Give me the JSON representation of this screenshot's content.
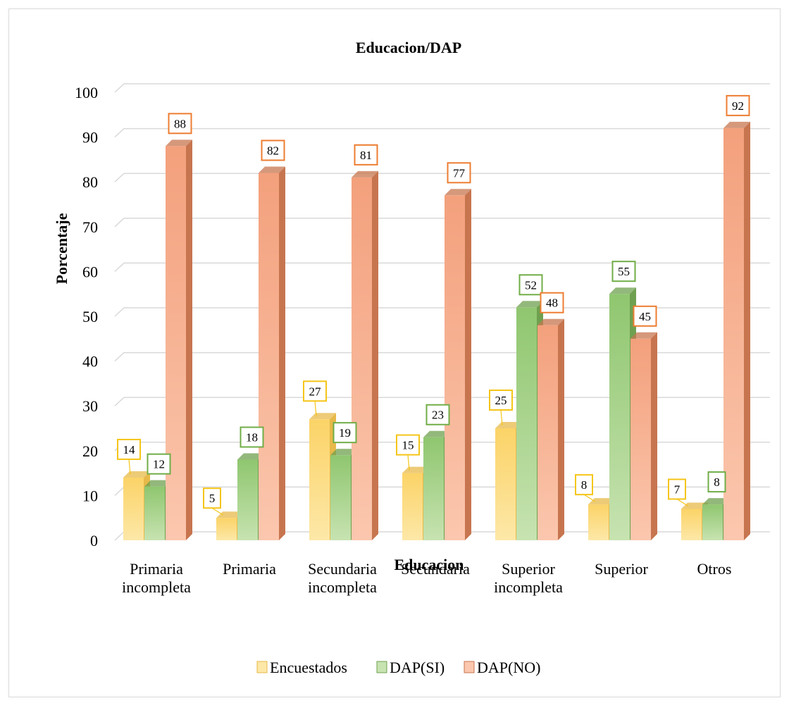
{
  "chart_data": {
    "type": "bar",
    "title": "Educacion/DAP",
    "xlabel": "Educacion",
    "ylabel": "Porcentaje",
    "ylim": [
      0,
      100
    ],
    "yticks": [
      0,
      10,
      20,
      30,
      40,
      50,
      60,
      70,
      80,
      90,
      100
    ],
    "grid": true,
    "legend_position": "bottom",
    "categories": [
      [
        "Primaria",
        "incompleta"
      ],
      [
        "Primaria"
      ],
      [
        "Secundaria",
        "incompleta"
      ],
      [
        "Secundaria"
      ],
      [
        "Superior",
        "incompleta"
      ],
      [
        "Superior"
      ],
      [
        "Otros"
      ]
    ],
    "series": [
      {
        "name": "Encuestados",
        "values": [
          14,
          5,
          27,
          15,
          25,
          8,
          7
        ],
        "color_top": "#fde8a8",
        "color_bottom": "#fbd367",
        "color_side": "#e7b94a",
        "label_border": "#f5c518"
      },
      {
        "name": "DAP(SI)",
        "values": [
          12,
          18,
          19,
          23,
          52,
          55,
          8
        ],
        "color_top": "#c7e3b1",
        "color_bottom": "#8fc66f",
        "color_side": "#6fa04f",
        "label_border": "#70ad47"
      },
      {
        "name": "DAP(NO)",
        "values": [
          88,
          82,
          81,
          77,
          48,
          45,
          92
        ],
        "color_top": "#fbc7ae",
        "color_bottom": "#f3a07c",
        "color_side": "#c7754f",
        "label_border": "#ed7d31"
      }
    ]
  }
}
